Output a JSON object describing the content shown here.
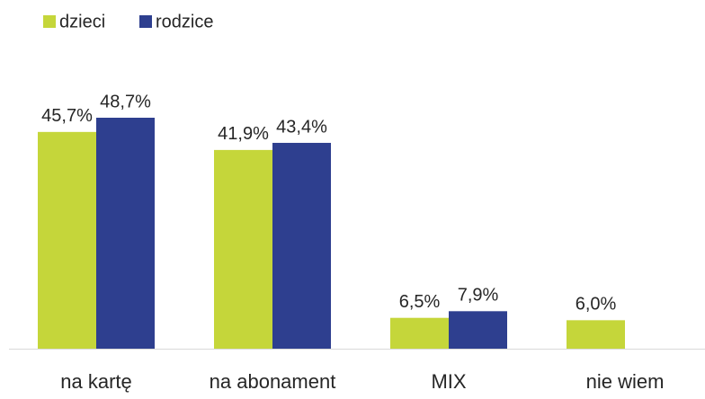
{
  "chart_data": {
    "type": "bar",
    "categories": [
      "na kartę",
      "na abonament",
      "MIX",
      "nie wiem"
    ],
    "series": [
      {
        "name": "dzieci",
        "color": "#c5d63a",
        "values": [
          45.7,
          41.9,
          6.5,
          6.0
        ],
        "value_labels": [
          "45,7%",
          "41,9%",
          "6,5%",
          "6,0%"
        ]
      },
      {
        "name": "rodzice",
        "color": "#2e3f8f",
        "values": [
          48.7,
          43.4,
          7.9,
          null
        ],
        "value_labels": [
          "48,7%",
          "43,4%",
          "7,9%",
          null
        ]
      }
    ],
    "legend": "top-left"
  }
}
